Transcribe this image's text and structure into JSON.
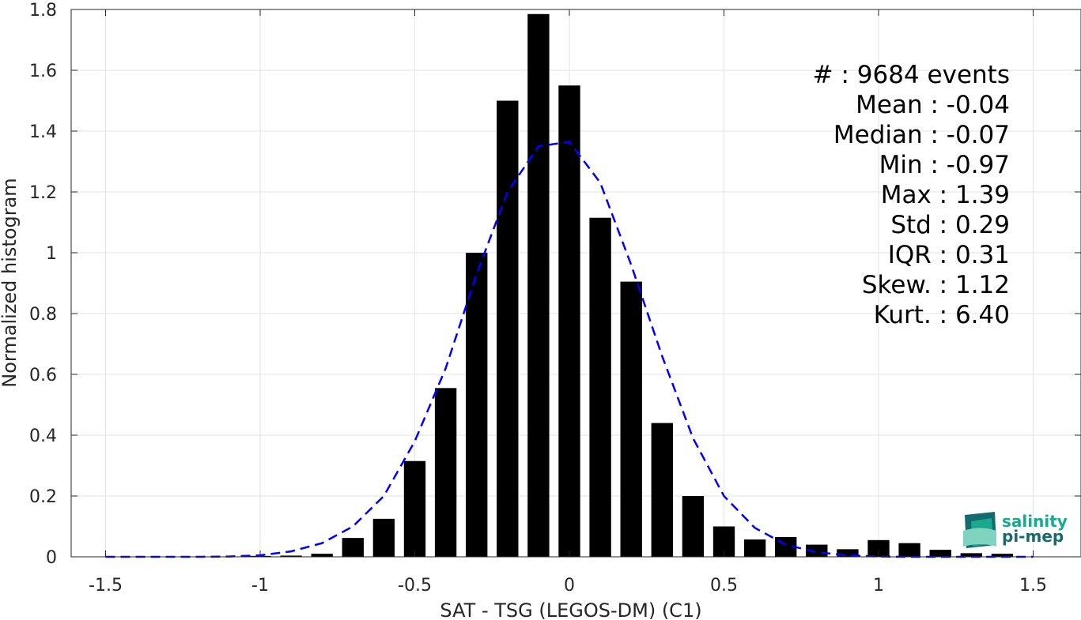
{
  "chart_data": {
    "type": "bar",
    "xlabel": "SAT - TSG (LEGOS-DM) (C1)",
    "ylabel": "Normalized histogram",
    "xlim": [
      -1.6,
      1.6
    ],
    "ylim": [
      0,
      1.8
    ],
    "xticks": [
      -1.5,
      -1,
      -0.5,
      0,
      0.5,
      1,
      1.5
    ],
    "xtick_labels": [
      "-1.5",
      "-1",
      "-0.5",
      "0",
      "0.5",
      "1",
      "1.5"
    ],
    "yticks": [
      0,
      0.2,
      0.4,
      0.6,
      0.8,
      1,
      1.2,
      1.4,
      1.6,
      1.8
    ],
    "ytick_labels": [
      "0",
      "0.2",
      "0.4",
      "0.6",
      "0.8",
      "1",
      "1.2",
      "1.4",
      "1.6",
      "1.8"
    ],
    "grid": true,
    "bar_width": 0.07,
    "bar_color": "#000000",
    "bars": {
      "x": [
        -1.5,
        -1.4,
        -1.3,
        -1.2,
        -1.1,
        -1.0,
        -0.9,
        -0.8,
        -0.7,
        -0.6,
        -0.5,
        -0.4,
        -0.3,
        -0.2,
        -0.1,
        0.0,
        0.1,
        0.2,
        0.3,
        0.4,
        0.5,
        0.6,
        0.7,
        0.8,
        0.9,
        1.0,
        1.1,
        1.2,
        1.3,
        1.4
      ],
      "values": [
        0,
        0,
        0,
        0,
        0,
        0.003,
        0.004,
        0.01,
        0.062,
        0.125,
        0.315,
        0.555,
        1.0,
        1.5,
        1.785,
        1.55,
        1.115,
        0.905,
        0.44,
        0.2,
        0.1,
        0.057,
        0.065,
        0.04,
        0.025,
        0.055,
        0.045,
        0.023,
        0.012,
        0.01
      ]
    },
    "fit_curve": {
      "color": "#0000ff",
      "style": "dashed",
      "x": [
        -1.5,
        -1.4,
        -1.3,
        -1.2,
        -1.1,
        -1.0,
        -0.9,
        -0.8,
        -0.7,
        -0.6,
        -0.5,
        -0.4,
        -0.3,
        -0.2,
        -0.1,
        0.0,
        0.1,
        0.2,
        0.3,
        0.4,
        0.5,
        0.6,
        0.7,
        0.8,
        0.9,
        1.0,
        1.1,
        1.2,
        1.3,
        1.4,
        1.5
      ],
      "y": [
        0.0,
        0.0,
        0.0,
        0.0,
        0.001,
        0.005,
        0.018,
        0.045,
        0.1,
        0.2,
        0.38,
        0.62,
        0.93,
        1.2,
        1.35,
        1.365,
        1.23,
        0.96,
        0.66,
        0.39,
        0.2,
        0.095,
        0.04,
        0.015,
        0.005,
        0.001,
        0.0,
        0.0,
        0.0,
        0.0,
        0.0
      ]
    }
  },
  "stats": [
    "#  : 9684 events",
    "Mean : -0.04",
    "Median : -0.07",
    "Min : -0.97",
    "Max : 1.39",
    "Std : 0.29",
    "IQR : 0.31",
    "Skew. : 1.12",
    "Kurt. : 6.40"
  ],
  "logo": {
    "line1": "salinity",
    "line2": "pi-mep",
    "color1": "#1aa88f",
    "color2": "#146b6e"
  }
}
